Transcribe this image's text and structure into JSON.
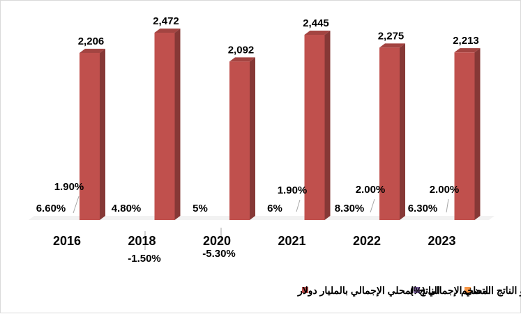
{
  "chart_data": {
    "type": "bar",
    "three_d": true,
    "categories": [
      "2016",
      "2018",
      "2020",
      "2021",
      "2022",
      "2023"
    ],
    "series": [
      {
        "name": "الناتج المحلي الإجمالي بالمليار دولار",
        "color": "#c0504d",
        "values": [
          2206,
          2472,
          2092,
          2445,
          2275,
          2213
        ],
        "labels": [
          "2,206",
          "2,472",
          "2,092",
          "2,445",
          "2,275",
          "2,213"
        ]
      },
      {
        "name": "نمو الناتج المحلي الإجمالي (%)",
        "color": "#8064a2",
        "values": [
          1.9,
          -1.5,
          -5.3,
          1.9,
          2.0,
          2.0
        ],
        "labels": [
          "1.90%",
          "-1.50%",
          "-5.30%",
          "1.90%",
          "2.00%",
          "2.00%"
        ]
      },
      {
        "name": "التضخم",
        "color": "#f79646",
        "values": [
          6.6,
          4.8,
          5,
          6,
          8.3,
          6.3
        ],
        "labels": [
          "6.60%",
          "4.80%",
          "5%",
          "6%",
          "8.30%",
          "6.30%"
        ]
      }
    ],
    "gridlines": false,
    "legend_position": "bottom"
  }
}
